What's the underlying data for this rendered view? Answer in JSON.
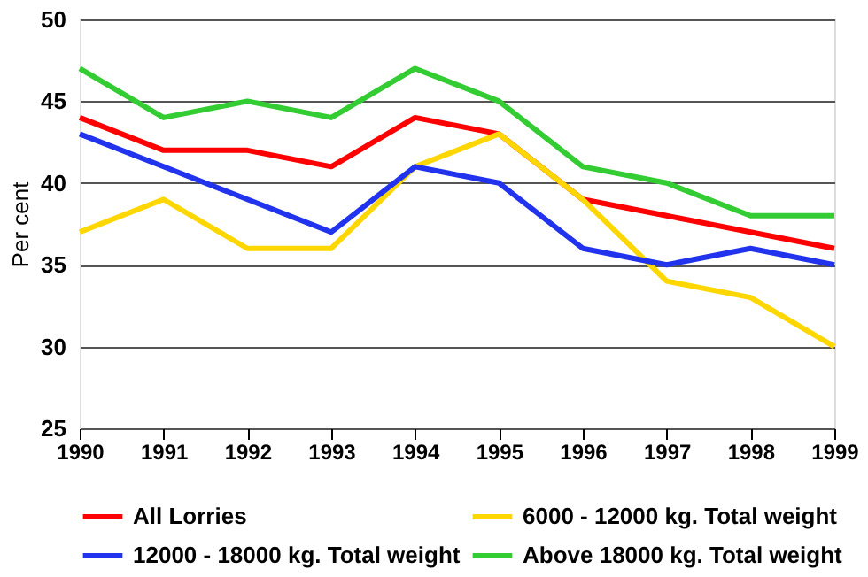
{
  "chart_data": {
    "type": "line",
    "ylabel": "Per cent",
    "x": [
      1990,
      1991,
      1992,
      1993,
      1994,
      1995,
      1996,
      1997,
      1998,
      1999
    ],
    "xlim": [
      1990,
      1999
    ],
    "xticks": [
      1990,
      1991,
      1992,
      1993,
      1994,
      1995,
      1996,
      1997,
      1998,
      1999
    ],
    "ylim": [
      25,
      50
    ],
    "yticks": [
      25,
      30,
      35,
      40,
      45,
      50
    ],
    "grid": "y",
    "legend": "bottom",
    "marker": "none",
    "line_style": "solid",
    "series": [
      {
        "name": "All Lorries",
        "color": "#ff0000",
        "values": [
          44,
          42,
          42,
          41,
          44,
          43,
          39,
          38,
          37,
          36
        ]
      },
      {
        "name": "6000 - 12000 kg. Total weight",
        "color": "#ffd700",
        "values": [
          37,
          39,
          36,
          36,
          41,
          43,
          39,
          34,
          33,
          30
        ]
      },
      {
        "name": "12000 - 18000 kg. Total weight",
        "color": "#2233ee",
        "values": [
          43,
          41,
          39,
          37,
          41,
          40,
          36,
          35,
          36,
          35
        ]
      },
      {
        "name": "Above 18000 kg. Total weight",
        "color": "#33cc33",
        "values": [
          47,
          44,
          45,
          44,
          47,
          45,
          41,
          40,
          38,
          38
        ]
      }
    ]
  }
}
